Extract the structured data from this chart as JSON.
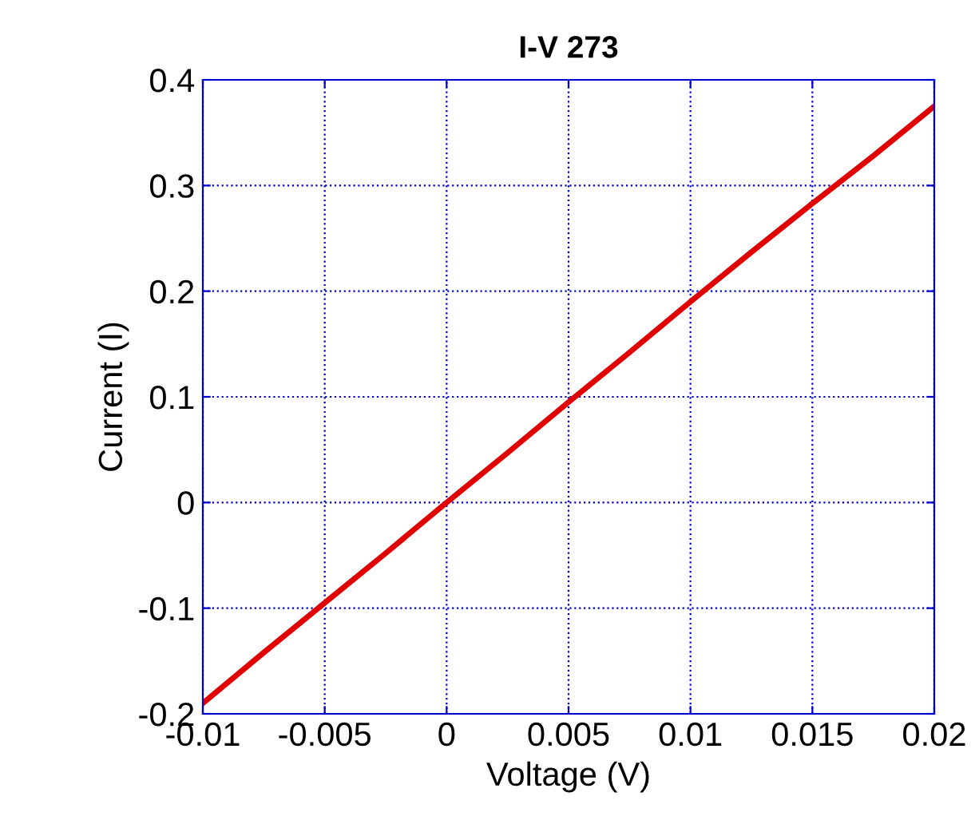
{
  "chart_data": {
    "type": "line",
    "title": "I-V 273",
    "xlabel": "Voltage (V)",
    "ylabel": "Current (I)",
    "x": [
      -0.01,
      -0.0075,
      -0.005,
      -0.0025,
      0,
      0.0025,
      0.005,
      0.0075,
      0.01,
      0.0125,
      0.015,
      0.0175,
      0.02
    ],
    "series": [
      {
        "color": "#e00000",
        "values": [
          -0.19,
          -0.142,
          -0.095,
          -0.048,
          0.0,
          0.047,
          0.095,
          0.142,
          0.19,
          0.237,
          0.283,
          0.328,
          0.375
        ]
      }
    ],
    "xlim": [
      -0.01,
      0.02
    ],
    "xticks": [
      -0.01,
      -0.005,
      0,
      0.005,
      0.01,
      0.015,
      0.02
    ],
    "ylim": [
      -0.2,
      0.4
    ],
    "yticks": [
      -0.2,
      -0.1,
      0,
      0.1,
      0.2,
      0.3,
      0.4
    ],
    "grid": true,
    "line_style": "solid",
    "marker": "none"
  }
}
